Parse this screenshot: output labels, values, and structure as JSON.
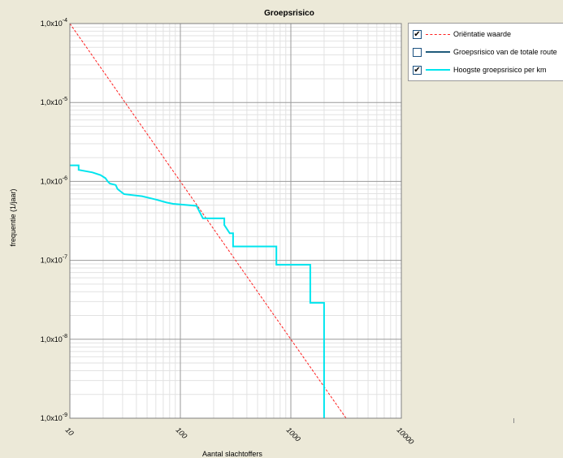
{
  "colors": {
    "background": "#ece9d8",
    "plot_background": "#ffffff",
    "grid_major": "#9a9a9a",
    "grid_minor": "#e2e2e2",
    "orientatie": "#ff2020",
    "totale_route": "#1f5b7a",
    "hoogste_per_km": "#00e5ee"
  },
  "legend": {
    "items": [
      {
        "label": "Oriëntatie waarde",
        "checked": true,
        "color": "#ff2020",
        "style": "dashed",
        "icon": "checkbox-checked"
      },
      {
        "label": "Groepsrisico van de totale route",
        "checked": false,
        "color": "#1f5b7a",
        "style": "solid",
        "icon": "checkbox-unchecked"
      },
      {
        "label": "Hoogste groepsrisico per km",
        "checked": true,
        "color": "#00e5ee",
        "style": "solid",
        "icon": "checkbox-checked"
      }
    ]
  },
  "chart_data": {
    "type": "line",
    "title": "Groepsrisico",
    "xlabel": "Aantal slachtoffers",
    "ylabel": "frequentie (1/jaar)",
    "x_scale": "log",
    "y_scale": "log",
    "xlim": [
      10,
      10000
    ],
    "ylim": [
      1e-09,
      0.0001
    ],
    "grid": true,
    "legend_position": "right",
    "x_ticks": [
      {
        "value": 10,
        "label": "10"
      },
      {
        "value": 100,
        "label": "100"
      },
      {
        "value": 1000,
        "label": "1000"
      },
      {
        "value": 10000,
        "label": "10000"
      }
    ],
    "y_ticks": [
      {
        "value": 0.0001,
        "mantissa": "1,0x10",
        "exponent": "-4"
      },
      {
        "value": 1e-05,
        "mantissa": "1,0x10",
        "exponent": "-5"
      },
      {
        "value": 1e-06,
        "mantissa": "1,0x10",
        "exponent": "-6"
      },
      {
        "value": 1e-07,
        "mantissa": "1,0x10",
        "exponent": "-7"
      },
      {
        "value": 1e-08,
        "mantissa": "1,0x10",
        "exponent": "-8"
      },
      {
        "value": 1e-09,
        "mantissa": "1,0x10",
        "exponent": "-9"
      }
    ],
    "series": [
      {
        "name": "Oriëntatie waarde",
        "color": "#ff2020",
        "style": "dashed",
        "points": [
          [
            10,
            0.0001
          ],
          [
            3162,
            1e-09
          ]
        ]
      },
      {
        "name": "Hoogste groepsrisico per km",
        "color": "#00e5ee",
        "style": "step",
        "points": [
          [
            10,
            1.6e-06
          ],
          [
            12,
            1.6e-06
          ],
          [
            12,
            1.4e-06
          ],
          [
            16,
            1.3e-06
          ],
          [
            19,
            1.2e-06
          ],
          [
            21,
            1.1e-06
          ],
          [
            22,
            1e-06
          ],
          [
            23,
            9.4e-07
          ],
          [
            26,
            9e-07
          ],
          [
            27,
            8e-07
          ],
          [
            29,
            7.4e-07
          ],
          [
            31,
            6.9e-07
          ],
          [
            45,
            6.5e-07
          ],
          [
            60,
            5.9e-07
          ],
          [
            75,
            5.4e-07
          ],
          [
            86,
            5.2e-07
          ],
          [
            140,
            4.9e-07
          ],
          [
            160,
            3.4e-07
          ],
          [
            250,
            3.4e-07
          ],
          [
            250,
            2.8e-07
          ],
          [
            280,
            2.2e-07
          ],
          [
            300,
            2.2e-07
          ],
          [
            300,
            1.5e-07
          ],
          [
            740,
            1.5e-07
          ],
          [
            740,
            8.8e-08
          ],
          [
            1500,
            8.8e-08
          ],
          [
            1500,
            2.9e-08
          ],
          [
            2000,
            2.9e-08
          ],
          [
            2000,
            1e-09
          ]
        ]
      }
    ]
  }
}
